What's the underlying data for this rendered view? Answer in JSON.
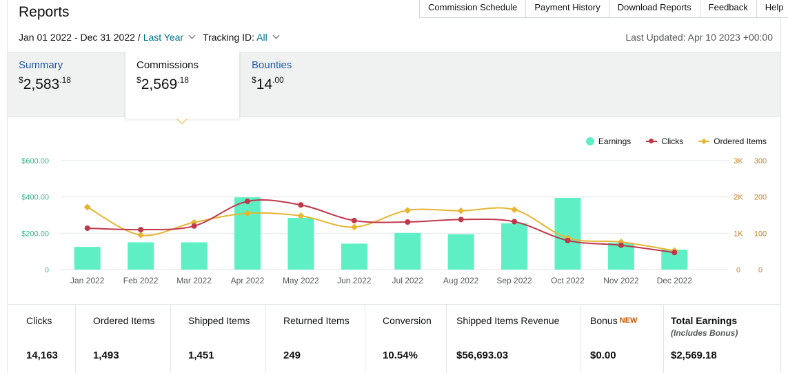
{
  "page": {
    "title": "Reports"
  },
  "topnav": {
    "items": [
      "Commission Schedule",
      "Payment History",
      "Download Reports",
      "Feedback",
      "Help"
    ]
  },
  "filters": {
    "date_range": "Jan 01 2022 - Dec 31 2022 /",
    "period_label": "Last Year",
    "tracking_label": "Tracking ID:",
    "tracking_value": "All",
    "last_updated": "Last Updated: Apr 10 2023 +00:00"
  },
  "tabs": [
    {
      "label": "Summary",
      "currency": "$",
      "whole": "2,583",
      "cents": ".18"
    },
    {
      "label": "Commissions",
      "currency": "$",
      "whole": "2,569",
      "cents": ".18"
    },
    {
      "label": "Bounties",
      "currency": "$",
      "whole": "14",
      "cents": ".00"
    }
  ],
  "legend": {
    "earnings": "Earnings",
    "clicks": "Clicks",
    "ordered_items": "Ordered Items"
  },
  "colors": {
    "earnings": "#5ef0c4",
    "clicks": "#c0374b",
    "ordered_items": "#e6b532",
    "axis_left": "#2fb58a",
    "axis_right": "#c77f22"
  },
  "chart_data": {
    "type": "bar",
    "categories": [
      "Jan 2022",
      "Feb 2022",
      "Mar 2022",
      "Apr 2022",
      "May 2022",
      "Jun 2022",
      "Jul 2022",
      "Aug 2022",
      "Sep 2022",
      "Oct 2022",
      "Nov 2022",
      "Dec 2022"
    ],
    "series": [
      {
        "name": "Earnings",
        "type": "bar",
        "axis": "left",
        "values": [
          125,
          150,
          150,
          398,
          285,
          143,
          202,
          195,
          255,
          395,
          148,
          110
        ]
      },
      {
        "name": "Clicks",
        "type": "line",
        "axis": "right-1",
        "values": [
          1140,
          1100,
          1200,
          1880,
          1780,
          1350,
          1310,
          1380,
          1320,
          800,
          670,
          470
        ]
      },
      {
        "name": "Ordered Items",
        "type": "line",
        "axis": "right-2",
        "values": [
          172,
          95,
          130,
          155,
          148,
          117,
          163,
          162,
          165,
          87,
          76,
          52
        ]
      }
    ],
    "left_axis": {
      "ticks": [
        "0",
        "$200.00",
        "$400.00",
        "$600.00"
      ],
      "ylim": [
        0,
        600
      ]
    },
    "right_axis_1": {
      "ticks": [
        "0",
        "1K",
        "2K",
        "3K"
      ],
      "ylim": [
        0,
        3000
      ]
    },
    "right_axis_2": {
      "ticks": [
        "0",
        "100",
        "200",
        "300"
      ],
      "ylim": [
        0,
        300
      ]
    },
    "legend_position": "top-right",
    "grid": true
  },
  "stats": [
    {
      "label": "Clicks",
      "value": "14,163"
    },
    {
      "label": "Ordered Items",
      "value": "1,493"
    },
    {
      "label": "Shipped Items",
      "value": "1,451"
    },
    {
      "label": "Returned Items",
      "value": "249"
    },
    {
      "label": "Conversion",
      "value": "10.54%"
    },
    {
      "label": "Shipped Items Revenue",
      "value": "$56,693.03"
    },
    {
      "label": "Bonus",
      "badge": "NEW",
      "value": "$0.00"
    },
    {
      "label": "Total Earnings",
      "sub": "(Includes Bonus)",
      "value": "$2,569.18"
    }
  ]
}
